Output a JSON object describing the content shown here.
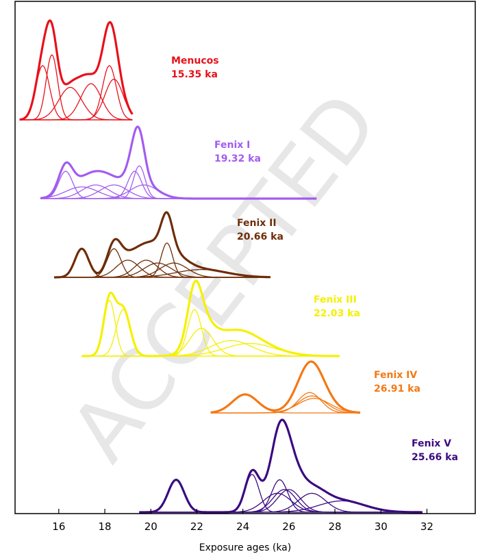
{
  "chart_data": {
    "type": "line",
    "title": "",
    "xlabel": "Exposure ages (ka)",
    "ylabel": "",
    "xlim": [
      14.1,
      34.1
    ],
    "xticks": [
      16,
      18,
      20,
      22,
      24,
      26,
      28,
      30,
      32
    ],
    "grid": false,
    "watermark": "ACCEPTED",
    "groups": [
      {
        "name": "Menucos",
        "age_label": "15.35 ka",
        "color": "#e8101a",
        "baseline": 1.0,
        "height": 1.0,
        "components": [
          [
            15.3,
            0.3
          ],
          [
            15.7,
            0.25
          ],
          [
            16.5,
            0.5
          ],
          [
            17.4,
            0.45
          ],
          [
            18.2,
            0.3
          ],
          [
            18.4,
            0.4
          ]
        ],
        "x_range": [
          14.3,
          19.2
        ]
      },
      {
        "name": "Fenix I",
        "age_label": "19.32 ka",
        "color": "#a25cf0",
        "baseline": 2.0,
        "height": 0.9,
        "components": [
          [
            16.3,
            0.3
          ],
          [
            17.0,
            0.7
          ],
          [
            17.6,
            0.6
          ],
          [
            18.4,
            0.6
          ],
          [
            19.3,
            0.3
          ],
          [
            19.5,
            0.25
          ],
          [
            19.7,
            0.6
          ]
        ],
        "x_range": [
          15.2,
          27.2
        ]
      },
      {
        "name": "Fenix II",
        "age_label": "20.66 ka",
        "color": "#6e2c08",
        "baseline": 3.0,
        "height": 0.9,
        "components": [
          [
            17.0,
            0.3
          ],
          [
            18.4,
            0.3
          ],
          [
            19.0,
            0.5
          ],
          [
            19.8,
            0.5
          ],
          [
            20.3,
            0.6
          ],
          [
            20.7,
            0.25
          ],
          [
            21.0,
            0.6
          ],
          [
            22.2,
            1.1
          ]
        ],
        "x_range": [
          15.8,
          25.2
        ]
      },
      {
        "name": "Fenix III",
        "age_label": "22.03 ka",
        "color": "#f5f000",
        "baseline": 4.0,
        "height": 0.9,
        "components": [
          [
            18.2,
            0.25
          ],
          [
            18.8,
            0.3
          ],
          [
            21.9,
            0.3
          ],
          [
            22.2,
            0.5
          ],
          [
            23.5,
            0.9
          ],
          [
            24.3,
            1.1
          ]
        ],
        "x_range": [
          17.0,
          28.2
        ]
      },
      {
        "name": "Fenix IV",
        "age_label": "26.91 ka",
        "color": "#f47814",
        "baseline": 5.0,
        "height": 0.9,
        "components": [
          [
            24.1,
            0.55
          ],
          [
            26.9,
            0.5
          ],
          [
            27.0,
            0.6
          ],
          [
            27.1,
            0.7
          ]
        ],
        "x_range": [
          22.6,
          29.1
        ]
      },
      {
        "name": "Fenix V",
        "age_label": "25.66 ka",
        "color": "#3a0a80",
        "baseline": 6.0,
        "height": 1.0,
        "components": [
          [
            21.1,
            0.35
          ],
          [
            24.4,
            0.3
          ],
          [
            25.5,
            0.6
          ],
          [
            25.6,
            0.35
          ],
          [
            25.8,
            0.5
          ],
          [
            26.0,
            0.5
          ],
          [
            27.0,
            0.6
          ],
          [
            28.3,
            1.0
          ]
        ],
        "x_range": [
          19.5,
          31.8
        ]
      }
    ]
  }
}
